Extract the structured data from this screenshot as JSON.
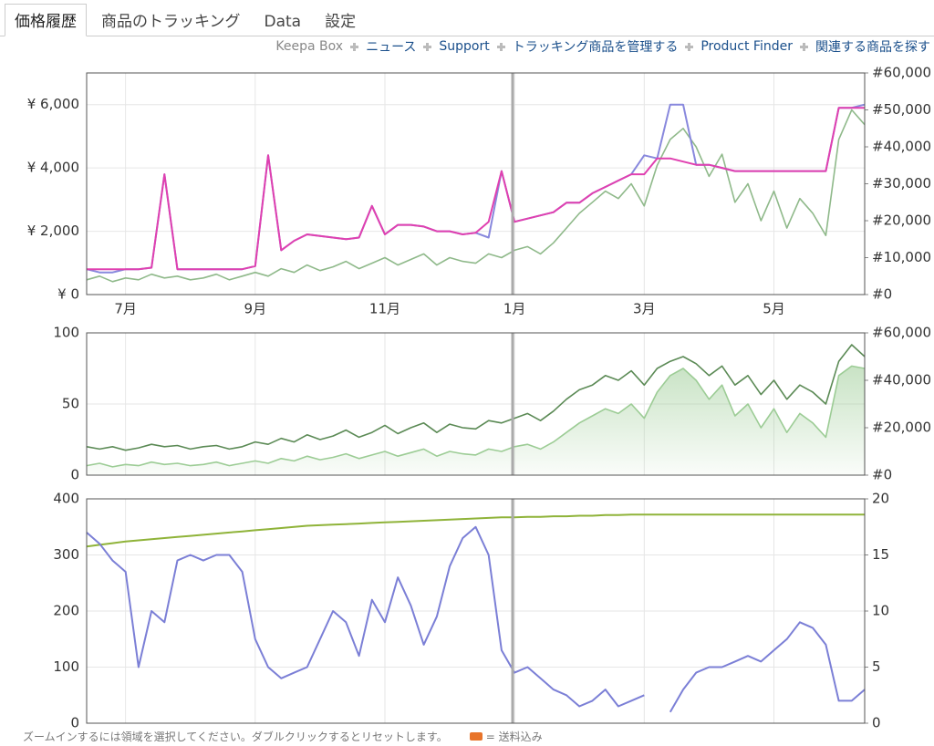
{
  "tabs": [
    "価格履歴",
    "商品のトラッキング",
    "Data",
    "設定"
  ],
  "links": [
    "Keepa Box",
    "ニュース",
    "Support",
    "トラッキング商品を管理する",
    "Product Finder",
    "関連する商品を探す"
  ],
  "chart_data": [
    {
      "type": "line",
      "categories": [
        null,
        null,
        null,
        "7月",
        null,
        null,
        null,
        null,
        null,
        null,
        null,
        null,
        null,
        "9月",
        null,
        null,
        null,
        null,
        null,
        null,
        null,
        null,
        null,
        "11月",
        null,
        null,
        null,
        null,
        null,
        null,
        null,
        null,
        null,
        "1月",
        null,
        null,
        null,
        null,
        null,
        null,
        null,
        null,
        null,
        "3月",
        null,
        null,
        null,
        null,
        null,
        null,
        null,
        null,
        null,
        "5月",
        null,
        null,
        null,
        null,
        null,
        null,
        null
      ],
      "ylim": [
        0,
        7000
      ],
      "yticks": [
        {
          "value": 0,
          "label": "¥ 0"
        },
        {
          "value": 2000,
          "label": "¥ 2,000"
        },
        {
          "value": 4000,
          "label": "¥ 4,000"
        },
        {
          "value": 6000,
          "label": "¥ 6,000"
        }
      ],
      "y2lim": [
        0,
        60000
      ],
      "y2ticks": [
        {
          "value": 0,
          "label": "#0"
        },
        {
          "value": 10000,
          "label": "#10,000"
        },
        {
          "value": 20000,
          "label": "#20,000"
        },
        {
          "value": 30000,
          "label": "#30,000"
        },
        {
          "value": 40000,
          "label": "#40,000"
        },
        {
          "value": 50000,
          "label": "#50,000"
        },
        {
          "value": 60000,
          "label": "#60,000"
        }
      ],
      "grid": true,
      "series": [
        {
          "color": "#8fb98a",
          "axis": "y2",
          "width": 1.6,
          "values": [
            4000,
            5000,
            3500,
            4500,
            4000,
            5500,
            4500,
            5000,
            4000,
            4500,
            5500,
            4000,
            5000,
            6000,
            5000,
            7000,
            6000,
            8000,
            6500,
            7500,
            9000,
            7000,
            8500,
            10000,
            8000,
            9500,
            11000,
            8000,
            10000,
            9000,
            8500,
            11000,
            10000,
            12000,
            13000,
            11000,
            14000,
            18000,
            22000,
            25000,
            28000,
            26000,
            30000,
            24000,
            35000,
            42000,
            45000,
            40000,
            32000,
            38000,
            25000,
            30000,
            20000,
            28000,
            18000,
            26000,
            22000,
            16000,
            42000,
            50000,
            46000
          ]
        },
        {
          "color": "#8888dd",
          "width": 2,
          "values": [
            800,
            700,
            700,
            800,
            800,
            850,
            3800,
            800,
            800,
            800,
            800,
            800,
            800,
            900,
            4400,
            1400,
            1700,
            1900,
            1850,
            1800,
            1750,
            1800,
            2800,
            1900,
            2200,
            2200,
            2150,
            2000,
            2000,
            1900,
            1950,
            1800,
            3900,
            2300,
            2400,
            2500,
            2600,
            2900,
            2900,
            3200,
            3400,
            3600,
            3800,
            4400,
            4300,
            6000,
            6000,
            4100,
            4100,
            4000,
            3900,
            3900,
            3900,
            3900,
            3900,
            3900,
            3900,
            3900,
            5900,
            5900,
            6000
          ]
        },
        {
          "color": "#e040b0",
          "width": 2,
          "values": [
            800,
            800,
            800,
            800,
            800,
            850,
            3800,
            800,
            800,
            800,
            800,
            800,
            800,
            900,
            4400,
            1400,
            1700,
            1900,
            1850,
            1800,
            1750,
            1800,
            2800,
            1900,
            2200,
            2200,
            2150,
            2000,
            2000,
            1900,
            1950,
            2300,
            3900,
            2300,
            2400,
            2500,
            2600,
            2900,
            2900,
            3200,
            3400,
            3600,
            3800,
            3800,
            4300,
            4300,
            4200,
            4100,
            4100,
            4000,
            3900,
            3900,
            3900,
            3900,
            3900,
            3900,
            3900,
            3900,
            5900,
            5900,
            5900
          ]
        }
      ]
    },
    {
      "type": "line",
      "ylim": [
        0,
        100
      ],
      "yticks": [
        0,
        50,
        100
      ],
      "y2lim": [
        0,
        60000
      ],
      "y2ticks": [
        {
          "value": 0,
          "label": "#0"
        },
        {
          "value": 20000,
          "label": "#20,000"
        },
        {
          "value": 40000,
          "label": "#40,000"
        },
        {
          "value": 60000,
          "label": "#60,000"
        }
      ],
      "grid": true,
      "series": [
        {
          "color": "#9ccc95",
          "axis": "y2",
          "area": true,
          "width": 1.6,
          "values": [
            4000,
            5000,
            3500,
            4500,
            4000,
            5500,
            4500,
            5000,
            4000,
            4500,
            5500,
            4000,
            5000,
            6000,
            5000,
            7000,
            6000,
            8000,
            6500,
            7500,
            9000,
            7000,
            8500,
            10000,
            8000,
            9500,
            11000,
            8000,
            10000,
            9000,
            8500,
            11000,
            10000,
            12000,
            13000,
            11000,
            14000,
            18000,
            22000,
            25000,
            28000,
            26000,
            30000,
            24000,
            35000,
            42000,
            45000,
            40000,
            32000,
            38000,
            25000,
            30000,
            20000,
            28000,
            18000,
            26000,
            22000,
            16000,
            42000,
            46000,
            45000
          ]
        },
        {
          "color": "#5b8a55",
          "axis": "y2",
          "width": 1.6,
          "values": [
            12000,
            11000,
            12000,
            10500,
            11500,
            13000,
            12000,
            12500,
            11000,
            12000,
            12500,
            11000,
            12000,
            14000,
            13000,
            15500,
            14000,
            17000,
            15000,
            16500,
            19000,
            16000,
            18000,
            21000,
            17500,
            20000,
            22000,
            18000,
            21500,
            20000,
            19500,
            23000,
            22000,
            24000,
            26000,
            23000,
            27000,
            32000,
            36000,
            38000,
            42000,
            40000,
            44000,
            38000,
            45000,
            48000,
            50000,
            47000,
            42000,
            46000,
            38000,
            42000,
            34000,
            40000,
            32000,
            38000,
            35000,
            30000,
            48000,
            55000,
            50000
          ]
        }
      ]
    },
    {
      "type": "line",
      "ylim": [
        0,
        400
      ],
      "yticks": [
        0,
        100,
        200,
        300,
        400
      ],
      "y2lim": [
        0,
        20
      ],
      "y2ticks": [
        0,
        5,
        10,
        15,
        20
      ],
      "grid": true,
      "series": [
        {
          "color": "#8fb339",
          "width": 2,
          "values": [
            315,
            318,
            321,
            324,
            326,
            328,
            330,
            332,
            334,
            336,
            338,
            340,
            342,
            344,
            346,
            348,
            350,
            352,
            353,
            354,
            355,
            356,
            357,
            358,
            359,
            360,
            361,
            362,
            363,
            364,
            365,
            366,
            367,
            367,
            368,
            368,
            369,
            369,
            370,
            370,
            371,
            371,
            372,
            372,
            372,
            372,
            372,
            372,
            372,
            372,
            372,
            372,
            372,
            372,
            372,
            372,
            372,
            372,
            372,
            372,
            372
          ]
        },
        {
          "color": "#7b7fd6",
          "width": 2,
          "values": [
            340,
            320,
            290,
            270,
            100,
            200,
            180,
            290,
            300,
            290,
            300,
            300,
            270,
            150,
            100,
            80,
            90,
            100,
            150,
            200,
            180,
            120,
            220,
            180,
            260,
            210,
            140,
            190,
            280,
            330,
            350,
            300,
            130,
            90,
            100,
            80,
            60,
            50,
            30,
            40,
            60,
            30,
            40,
            50,
            null,
            20,
            60,
            90,
            100,
            100,
            110,
            120,
            110,
            130,
            150,
            180,
            170,
            140,
            40,
            40,
            60
          ]
        }
      ]
    }
  ],
  "footer": {
    "hint": "ズームインするには領域を選択してください。ダブルクリックするとリセットします。",
    "shipping": "= 送料込み"
  }
}
